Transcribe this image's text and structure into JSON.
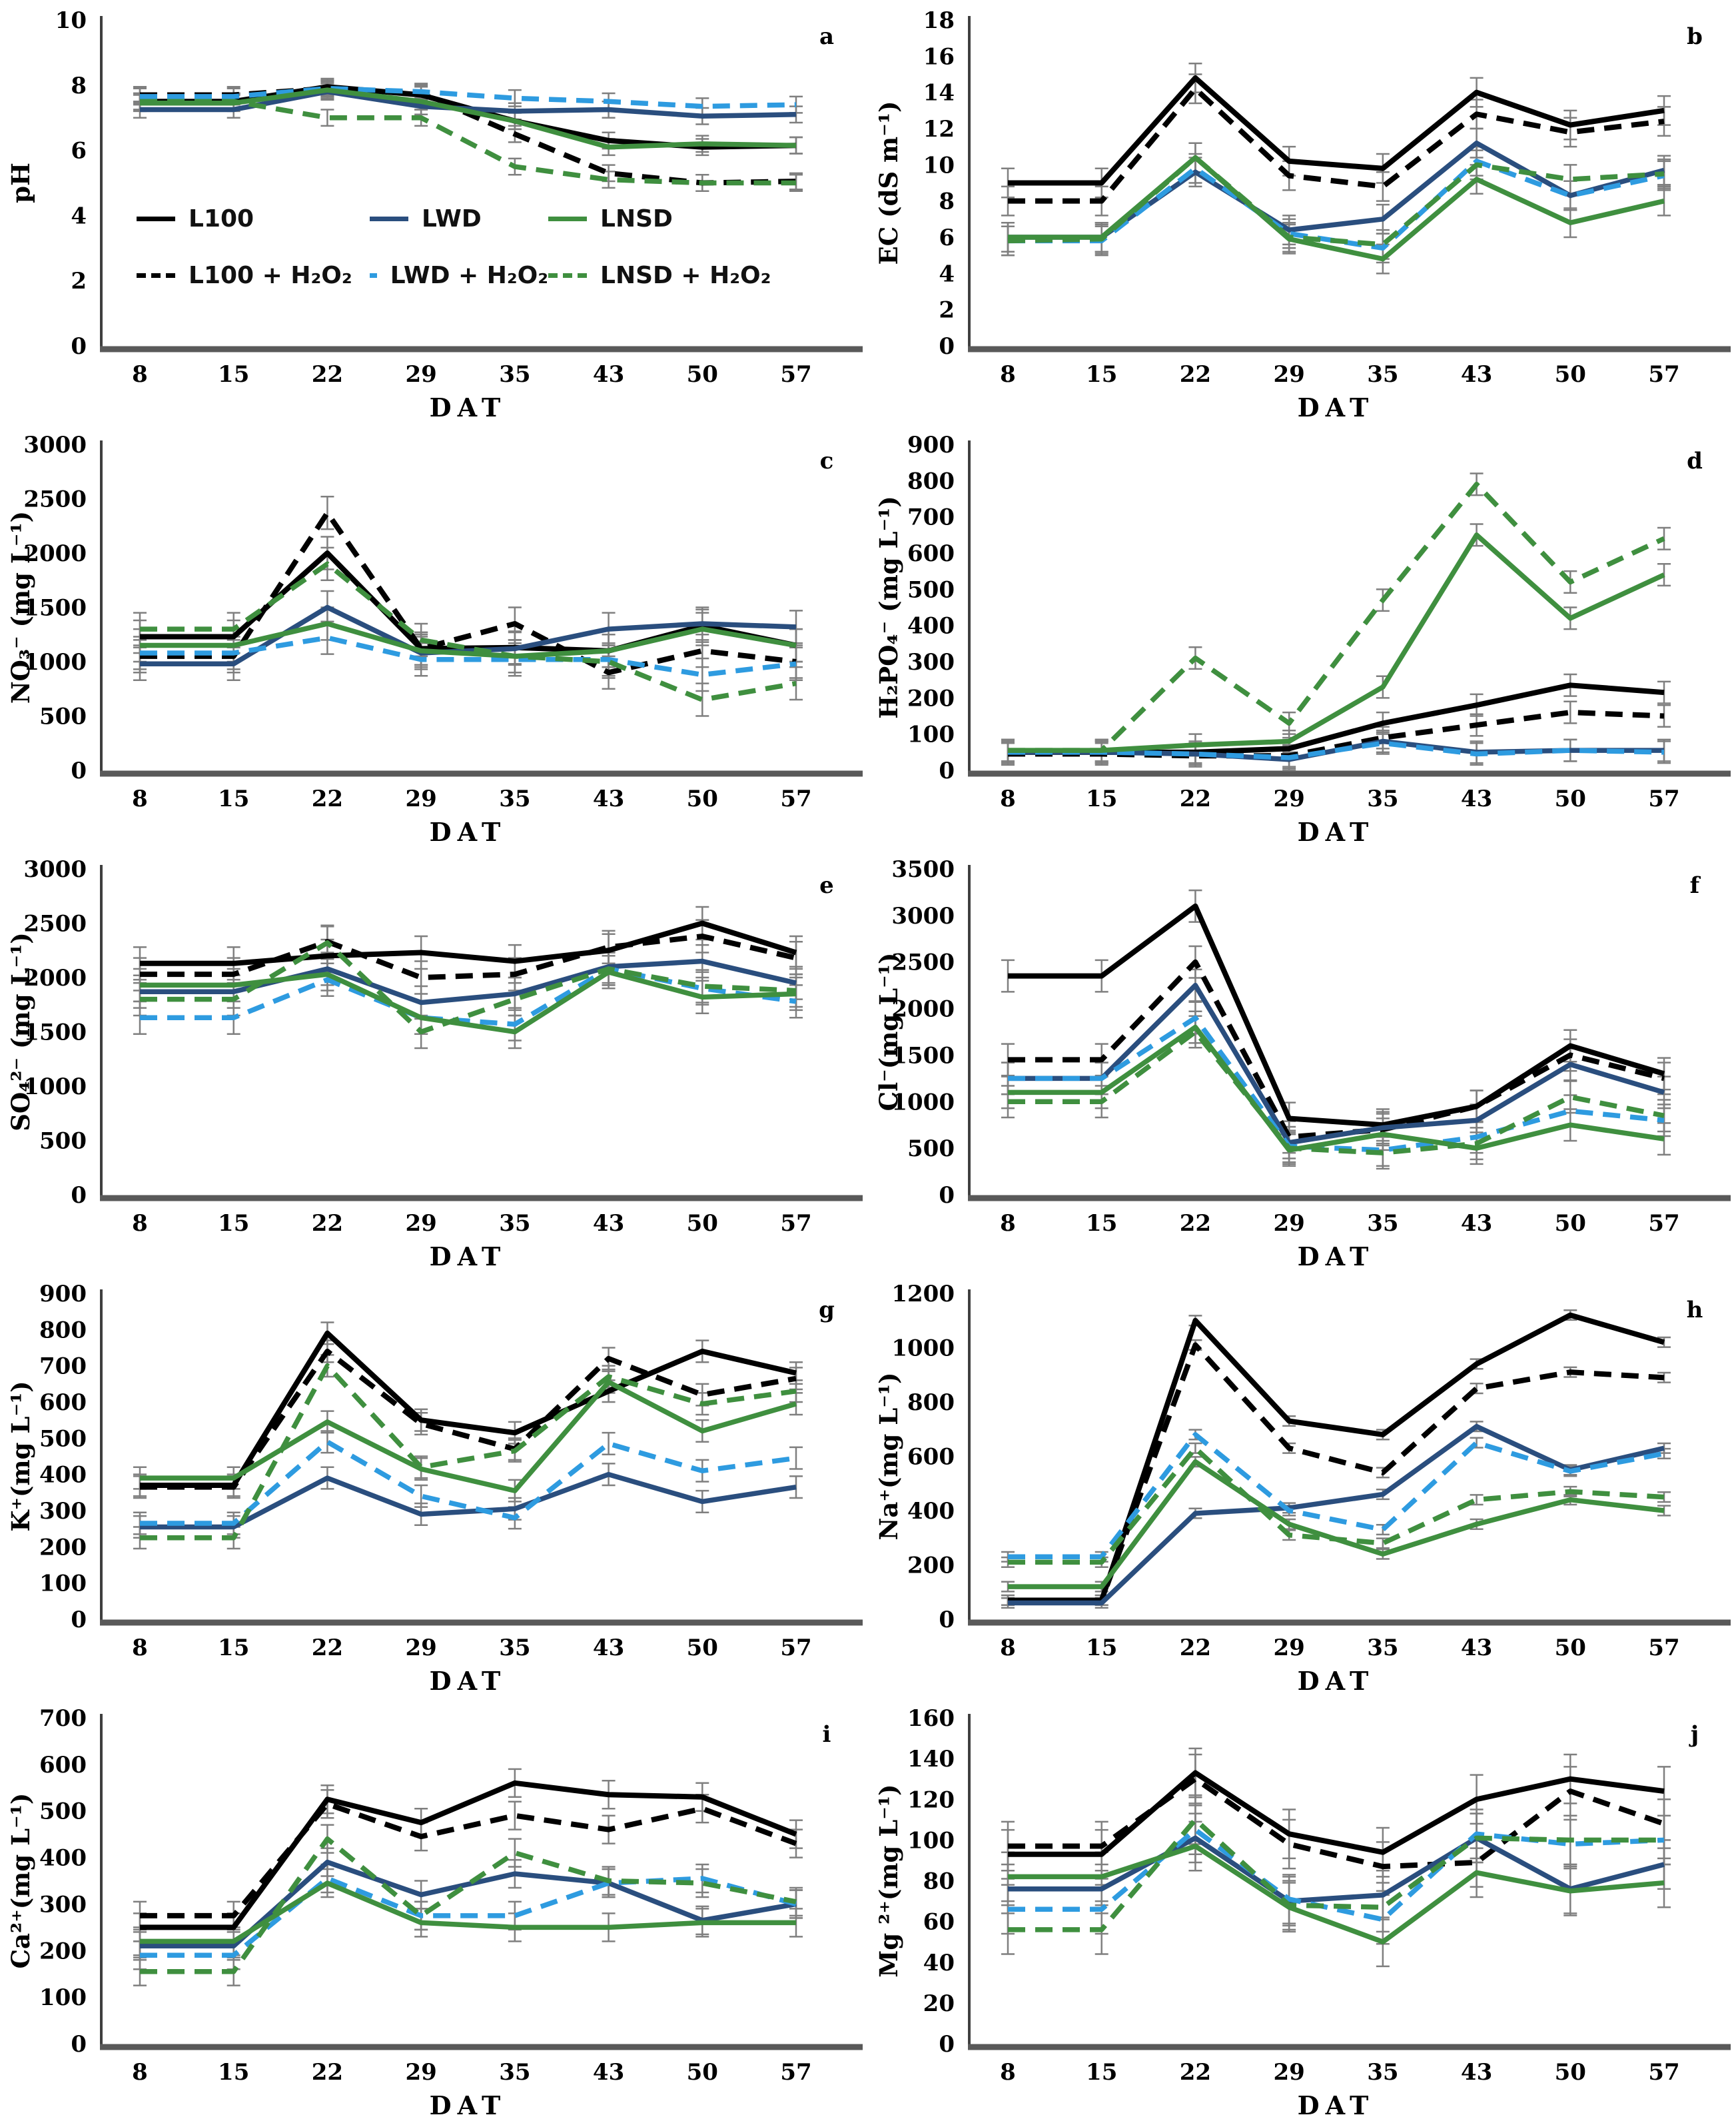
{
  "figure": {
    "xlabel": "DAT",
    "x_categories": [
      8,
      15,
      22,
      29,
      35,
      43,
      50,
      57
    ],
    "background": "#ffffff",
    "error_bar_color": "#7f7f7f",
    "axis_color": "#595959"
  },
  "legend": {
    "items": [
      {
        "label": "L100"
      },
      {
        "label": "LWD"
      },
      {
        "label": "LNSD"
      },
      {
        "label": "L100 + H₂O₂"
      },
      {
        "label": "LWD + H₂O₂"
      },
      {
        "label": "LNSD + H₂O₂"
      }
    ]
  },
  "series_meta": [
    {
      "name": "L100",
      "color": "#000000",
      "dashed": false
    },
    {
      "name": "L100 + H₂O₂",
      "color": "#000000",
      "dashed": true
    },
    {
      "name": "LWD",
      "color": "#2A4E7E",
      "dashed": false
    },
    {
      "name": "LWD + H₂O₂",
      "color": "#2E9BE0",
      "dashed": true
    },
    {
      "name": "LNSD",
      "color": "#3F8F3F",
      "dashed": false
    },
    {
      "name": "LNSD + H₂O₂",
      "color": "#3F8F3F",
      "dashed": true
    }
  ],
  "chart_data": [
    {
      "type": "line",
      "letter": "a",
      "ylabel": "pH",
      "xlabel": "DAT",
      "ylim": [
        0,
        10
      ],
      "ystep": 2,
      "err": 0.25,
      "x": [
        8,
        15,
        22,
        29,
        35,
        43,
        50,
        57
      ],
      "series": [
        {
          "name": "L100",
          "values": [
            7.5,
            7.5,
            7.95,
            7.7,
            6.9,
            6.3,
            6.1,
            6.15
          ]
        },
        {
          "name": "L100 + H₂O₂",
          "values": [
            7.7,
            7.7,
            7.9,
            7.75,
            6.5,
            5.3,
            5.0,
            5.05
          ]
        },
        {
          "name": "LWD",
          "values": [
            7.25,
            7.25,
            7.8,
            7.35,
            7.2,
            7.25,
            7.05,
            7.1
          ]
        },
        {
          "name": "LWD + H₂O₂",
          "values": [
            7.65,
            7.65,
            7.9,
            7.8,
            7.6,
            7.5,
            7.35,
            7.4
          ]
        },
        {
          "name": "LNSD",
          "values": [
            7.45,
            7.45,
            7.85,
            7.5,
            6.9,
            6.1,
            6.2,
            6.15
          ]
        },
        {
          "name": "LNSD + H₂O₂",
          "values": [
            7.5,
            7.5,
            7.0,
            7.0,
            5.5,
            5.1,
            5.0,
            5.0
          ]
        }
      ]
    },
    {
      "type": "line",
      "letter": "b",
      "ylabel": "EC (dS m⁻¹)",
      "xlabel": "DAT",
      "ylim": [
        0,
        18
      ],
      "ystep": 2,
      "err": 0.8,
      "x": [
        8,
        15,
        22,
        29,
        35,
        43,
        50,
        57
      ],
      "series": [
        {
          "name": "L100",
          "values": [
            9,
            9,
            14.8,
            10.2,
            9.8,
            14,
            12.2,
            13
          ]
        },
        {
          "name": "L100 + H₂O₂",
          "values": [
            8,
            8,
            14.2,
            9.4,
            8.8,
            12.8,
            11.8,
            12.4
          ]
        },
        {
          "name": "LWD",
          "values": [
            6,
            6,
            9.6,
            6.4,
            7,
            11.2,
            8.3,
            9.7
          ]
        },
        {
          "name": "LWD + H₂O₂",
          "values": [
            5.8,
            5.8,
            9.8,
            6.2,
            5.4,
            10.2,
            8.3,
            9.4
          ]
        },
        {
          "name": "LNSD",
          "values": [
            6,
            6,
            10.4,
            5.9,
            4.8,
            9.2,
            6.8,
            8
          ]
        },
        {
          "name": "LNSD + H₂O₂",
          "values": [
            5.8,
            5.9,
            10.4,
            6.0,
            5.6,
            10.0,
            9.2,
            9.5
          ]
        }
      ]
    },
    {
      "type": "line",
      "letter": "c",
      "ylabel": "NO₃⁻ (mg L⁻¹)",
      "xlabel": "DAT",
      "ylim": [
        0,
        3000
      ],
      "ystep": 500,
      "err": 150,
      "x": [
        8,
        15,
        22,
        29,
        35,
        43,
        50,
        57
      ],
      "series": [
        {
          "name": "L100",
          "values": [
            1230,
            1230,
            2000,
            1120,
            1130,
            1100,
            1330,
            1150
          ]
        },
        {
          "name": "L100 + H₂O₂",
          "values": [
            1050,
            1050,
            2370,
            1120,
            1350,
            900,
            1100,
            1000
          ]
        },
        {
          "name": "LWD",
          "values": [
            980,
            980,
            1500,
            1080,
            1120,
            1300,
            1350,
            1320
          ]
        },
        {
          "name": "LWD + H₂O₂",
          "values": [
            1080,
            1080,
            1220,
            1020,
            1020,
            1020,
            880,
            980
          ]
        },
        {
          "name": "LNSD",
          "values": [
            1150,
            1150,
            1350,
            1100,
            1050,
            1100,
            1300,
            1150
          ]
        },
        {
          "name": "LNSD + H₂O₂",
          "values": [
            1300,
            1300,
            1900,
            1200,
            1050,
            1000,
            650,
            800
          ]
        }
      ]
    },
    {
      "type": "line",
      "letter": "d",
      "ylabel": "H₂PO₄⁻ (mg L⁻¹)",
      "xlabel": "DAT",
      "ylim": [
        0,
        900
      ],
      "ystep": 100,
      "err": 30,
      "x": [
        8,
        15,
        22,
        29,
        35,
        43,
        50,
        57
      ],
      "series": [
        {
          "name": "L100",
          "values": [
            50,
            50,
            50,
            60,
            130,
            180,
            235,
            215
          ]
        },
        {
          "name": "L100 + H₂O₂",
          "values": [
            45,
            45,
            40,
            40,
            90,
            125,
            160,
            150
          ]
        },
        {
          "name": "LWD",
          "values": [
            50,
            50,
            45,
            30,
            80,
            50,
            55,
            55
          ]
        },
        {
          "name": "LWD + H₂O₂",
          "values": [
            50,
            50,
            45,
            35,
            75,
            45,
            55,
            50
          ]
        },
        {
          "name": "LNSD",
          "values": [
            55,
            55,
            70,
            80,
            230,
            650,
            420,
            540
          ]
        },
        {
          "name": "LNSD + H₂O₂",
          "values": [
            55,
            55,
            310,
            130,
            470,
            790,
            520,
            640
          ]
        }
      ]
    },
    {
      "type": "line",
      "letter": "e",
      "ylabel": "SO₄²⁻ (mg L⁻¹)",
      "xlabel": "DAT",
      "ylim": [
        0,
        3000
      ],
      "ystep": 500,
      "err": 150,
      "x": [
        8,
        15,
        22,
        29,
        35,
        43,
        50,
        57
      ],
      "series": [
        {
          "name": "L100",
          "values": [
            2130,
            2130,
            2200,
            2230,
            2150,
            2250,
            2500,
            2230
          ]
        },
        {
          "name": "L100 + H₂O₂",
          "values": [
            2030,
            2030,
            2330,
            2000,
            2030,
            2280,
            2380,
            2180
          ]
        },
        {
          "name": "LWD",
          "values": [
            1870,
            1870,
            2080,
            1770,
            1850,
            2100,
            2150,
            1950
          ]
        },
        {
          "name": "LWD + H₂O₂",
          "values": [
            1630,
            1630,
            1980,
            1630,
            1570,
            2080,
            1900,
            1780
          ]
        },
        {
          "name": "LNSD",
          "values": [
            1930,
            1930,
            2030,
            1630,
            1500,
            2050,
            1820,
            1850
          ]
        },
        {
          "name": "LNSD + H₂O₂",
          "values": [
            1800,
            1800,
            2320,
            1500,
            1800,
            2080,
            1920,
            1880
          ]
        }
      ]
    },
    {
      "type": "line",
      "letter": "f",
      "ylabel": "Cl⁻(mg L⁻¹)",
      "xlabel": "DAT",
      "ylim": [
        0,
        3500
      ],
      "ystep": 500,
      "err": 170,
      "x": [
        8,
        15,
        22,
        29,
        35,
        43,
        50,
        57
      ],
      "series": [
        {
          "name": "L100",
          "values": [
            2350,
            2350,
            3100,
            820,
            750,
            950,
            1600,
            1300
          ]
        },
        {
          "name": "L100 + H₂O₂",
          "values": [
            1450,
            1450,
            2500,
            620,
            700,
            950,
            1500,
            1250
          ]
        },
        {
          "name": "LWD",
          "values": [
            1250,
            1250,
            2250,
            560,
            720,
            800,
            1400,
            1100
          ]
        },
        {
          "name": "LWD + H₂O₂",
          "values": [
            1250,
            1250,
            1900,
            520,
            480,
            620,
            900,
            800
          ]
        },
        {
          "name": "LNSD",
          "values": [
            1100,
            1100,
            1800,
            480,
            650,
            500,
            750,
            600
          ]
        },
        {
          "name": "LNSD + H₂O₂",
          "values": [
            1000,
            1000,
            1750,
            500,
            450,
            550,
            1050,
            850
          ]
        }
      ]
    },
    {
      "type": "line",
      "letter": "g",
      "ylabel": "K⁺(mg L⁻¹)",
      "xlabel": "DAT",
      "ylim": [
        0,
        900
      ],
      "ystep": 100,
      "err": 30,
      "x": [
        8,
        15,
        22,
        29,
        35,
        43,
        50,
        57
      ],
      "series": [
        {
          "name": "L100",
          "values": [
            370,
            370,
            790,
            550,
            515,
            630,
            740,
            680
          ]
        },
        {
          "name": "L100 + H₂O₂",
          "values": [
            365,
            365,
            740,
            540,
            470,
            720,
            620,
            665
          ]
        },
        {
          "name": "LWD",
          "values": [
            255,
            255,
            390,
            290,
            305,
            400,
            325,
            365
          ]
        },
        {
          "name": "LWD + H₂O₂",
          "values": [
            265,
            265,
            490,
            340,
            280,
            485,
            410,
            445
          ]
        },
        {
          "name": "LNSD",
          "values": [
            390,
            390,
            545,
            415,
            355,
            655,
            520,
            595
          ]
        },
        {
          "name": "LNSD + H₂O₂",
          "values": [
            225,
            225,
            700,
            420,
            465,
            670,
            595,
            630
          ]
        }
      ]
    },
    {
      "type": "line",
      "letter": "h",
      "ylabel": "Na⁺(mg L⁻¹)",
      "xlabel": "DAT",
      "ylim": [
        0,
        1200
      ],
      "ystep": 200,
      "err": 18,
      "x": [
        8,
        15,
        22,
        29,
        35,
        43,
        50,
        57
      ],
      "series": [
        {
          "name": "L100",
          "values": [
            70,
            70,
            1100,
            730,
            680,
            940,
            1120,
            1020
          ]
        },
        {
          "name": "L100 + H₂O₂",
          "values": [
            70,
            70,
            1010,
            630,
            540,
            850,
            910,
            890
          ]
        },
        {
          "name": "LWD",
          "values": [
            60,
            60,
            390,
            410,
            460,
            710,
            550,
            630
          ]
        },
        {
          "name": "LWD + H₂O₂",
          "values": [
            230,
            230,
            680,
            400,
            330,
            650,
            545,
            610
          ]
        },
        {
          "name": "LNSD",
          "values": [
            120,
            120,
            580,
            350,
            240,
            350,
            440,
            400
          ]
        },
        {
          "name": "LNSD + H₂O₂",
          "values": [
            210,
            210,
            630,
            310,
            280,
            440,
            470,
            450
          ]
        }
      ]
    },
    {
      "type": "line",
      "letter": "i",
      "ylabel": "Ca²⁺(mg L⁻¹)",
      "xlabel": "DAT",
      "ylim": [
        0,
        700
      ],
      "ystep": 100,
      "err": 30,
      "x": [
        8,
        15,
        22,
        29,
        35,
        43,
        50,
        57
      ],
      "series": [
        {
          "name": "L100",
          "values": [
            250,
            250,
            525,
            475,
            560,
            535,
            530,
            450
          ]
        },
        {
          "name": "L100 + H₂O₂",
          "values": [
            275,
            275,
            515,
            445,
            490,
            460,
            505,
            430
          ]
        },
        {
          "name": "LWD",
          "values": [
            210,
            210,
            390,
            320,
            365,
            345,
            265,
            300
          ]
        },
        {
          "name": "LWD + H₂O₂",
          "values": [
            190,
            190,
            355,
            275,
            275,
            345,
            355,
            300
          ]
        },
        {
          "name": "LNSD",
          "values": [
            220,
            220,
            345,
            260,
            250,
            250,
            260,
            260
          ]
        },
        {
          "name": "LNSD + H₂O₂",
          "values": [
            155,
            155,
            440,
            275,
            410,
            350,
            345,
            305
          ]
        }
      ]
    },
    {
      "type": "line",
      "letter": "j",
      "ylabel": "Mg ²⁺(mg L⁻¹)",
      "xlabel": "DAT",
      "ylim": [
        0,
        160
      ],
      "ystep": 20,
      "err": 12,
      "x": [
        8,
        15,
        22,
        29,
        35,
        43,
        50,
        57
      ],
      "series": [
        {
          "name": "L100",
          "values": [
            93,
            93,
            133,
            103,
            94,
            120,
            130,
            124
          ]
        },
        {
          "name": "L100 + H₂O₂",
          "values": [
            97,
            97,
            130,
            98,
            87,
            89,
            124,
            108
          ]
        },
        {
          "name": "LWD",
          "values": [
            76,
            76,
            101,
            70,
            73,
            101,
            76,
            88
          ]
        },
        {
          "name": "LWD + H₂O₂",
          "values": [
            66,
            66,
            105,
            71,
            61,
            103,
            98,
            100
          ]
        },
        {
          "name": "LNSD",
          "values": [
            82,
            82,
            97,
            67,
            50,
            84,
            75,
            79
          ]
        },
        {
          "name": "LNSD + H₂O₂",
          "values": [
            56,
            56,
            110,
            68,
            67,
            101,
            100,
            100
          ]
        }
      ]
    }
  ]
}
